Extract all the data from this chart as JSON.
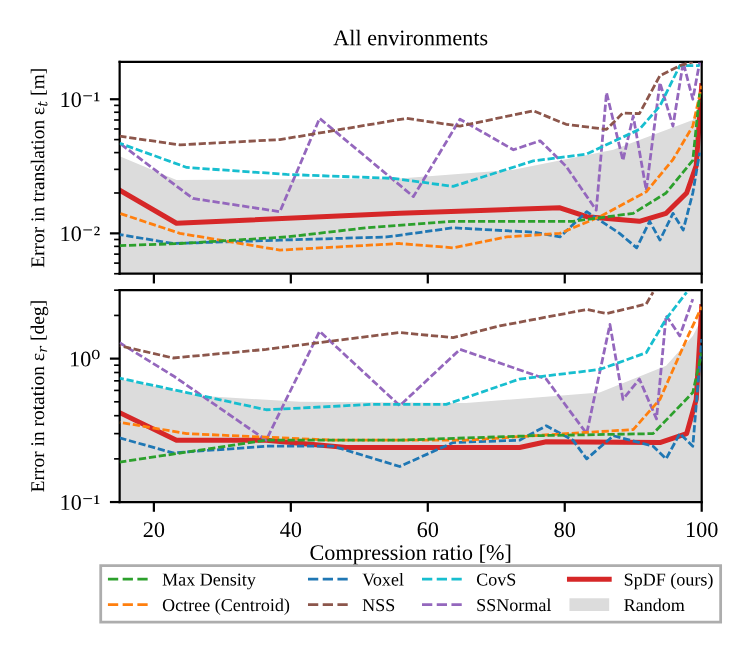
{
  "chart_data": [
    {
      "type": "line",
      "title": "All environments",
      "ylabel": "Error in translation ε$_{t}$ [m]",
      "log": "y",
      "grid": false,
      "tick_labels": "y",
      "xlim": [
        15,
        100
      ],
      "xticks": [
        {
          "value": 20,
          "label": null
        },
        {
          "value": 40,
          "label": null
        },
        {
          "value": 60,
          "label": null
        },
        {
          "value": 80,
          "label": null
        },
        {
          "value": 100,
          "label": null
        }
      ],
      "ylim": [
        0.005,
        0.19
      ],
      "yticks": [
        {
          "value": 0.01,
          "label": "10⁻²"
        },
        {
          "value": 0.1,
          "label": "10⁻¹"
        }
      ],
      "series": [
        {
          "color": "#2ca02c",
          "line_style": "dashed",
          "x": [
            15.0,
            23.8,
            39.4,
            51.0,
            63.7,
            81.2,
            90.0,
            94.8,
            98.7,
            99.7
          ],
          "values": [
            0.0081,
            0.0084,
            0.0094,
            0.011,
            0.0123,
            0.0123,
            0.0141,
            0.02,
            0.035,
            0.11
          ]
        },
        {
          "color": "#ff7f0e",
          "line_style": "dashed",
          "x": [
            15.0,
            23.8,
            38.4,
            55.9,
            63.7,
            71.5,
            79.3,
            85.1,
            91.9,
            95.8,
            98.7,
            100
          ],
          "values": [
            0.0141,
            0.01,
            0.0075,
            0.0084,
            0.0078,
            0.0094,
            0.01,
            0.0133,
            0.0204,
            0.0355,
            0.063,
            0.126
          ]
        },
        {
          "color": "#1f77b4",
          "line_style": "dashed",
          "x": [
            15.0,
            22.8,
            38.4,
            54.0,
            63.7,
            75.4,
            79.3,
            83.2,
            88.0,
            90.5,
            92.4,
            93.9,
            95.8,
            97.3,
            98.7,
            99.7
          ],
          "values": [
            0.0098,
            0.0084,
            0.0089,
            0.0094,
            0.011,
            0.0102,
            0.0094,
            0.0145,
            0.01,
            0.0078,
            0.0123,
            0.0089,
            0.0141,
            0.0106,
            0.02,
            0.04
          ]
        },
        {
          "color": "#8c564b",
          "line_style": "dashed",
          "x": [
            15.0,
            23.8,
            38.4,
            56.9,
            64.7,
            75.4,
            80.2,
            86.1,
            88.5,
            90.9,
            93.9,
            96.8,
            98.7
          ],
          "values": [
            0.053,
            0.0457,
            0.05,
            0.072,
            0.063,
            0.082,
            0.065,
            0.0596,
            0.079,
            0.078,
            0.15,
            0.178,
            0.19
          ]
        },
        {
          "color": "#17becf",
          "line_style": "dashed",
          "x": [
            15.0,
            24.8,
            39.4,
            54.9,
            63.7,
            75.4,
            83.2,
            90.9,
            93.9,
            96.8,
            99.7
          ],
          "values": [
            0.047,
            0.031,
            0.0275,
            0.0257,
            0.0224,
            0.0347,
            0.039,
            0.0596,
            0.089,
            0.178,
            0.178
          ]
        },
        {
          "color": "#9467bd",
          "line_style": "dashed",
          "x": [
            15.0,
            25.7,
            38.4,
            44.2,
            57.9,
            64.7,
            72.5,
            76.4,
            80.2,
            84.6,
            86.1,
            88.5,
            90.0,
            91.9,
            93.9,
            95.8,
            97.3,
            98.7,
            99.7
          ],
          "values": [
            0.047,
            0.0182,
            0.0145,
            0.072,
            0.0188,
            0.071,
            0.042,
            0.049,
            0.0316,
            0.0149,
            0.112,
            0.035,
            0.075,
            0.021,
            0.133,
            0.063,
            0.188,
            0.1,
            0.188
          ]
        },
        {
          "color": "#d62728",
          "line_style": "solid",
          "x": [
            15.0,
            23.3,
            55.9,
            79.3,
            83.2,
            90.9,
            94.8,
            97.8,
            99.2,
            100
          ],
          "values": [
            0.021,
            0.0119,
            0.0141,
            0.0155,
            0.0133,
            0.0123,
            0.0141,
            0.02,
            0.032,
            0.126
          ]
        },
        {
          "type": "area",
          "color": "#dcdcdc",
          "x": [
            15.0,
            23.3,
            55.9,
            72.5,
            87.1,
            98.7,
            100
          ],
          "values": [
            0.0376,
            0.025,
            0.0257,
            0.0298,
            0.042,
            0.07,
            0.1
          ]
        }
      ]
    },
    {
      "type": "line",
      "xlabel": "Compression ratio [%]",
      "ylabel": "Error in rotation ε$_{r}$ [deg]",
      "log": "y",
      "grid": false,
      "legend": "bottom",
      "xlim": [
        15,
        100
      ],
      "xticks": [
        20,
        40,
        60,
        80,
        100
      ],
      "ylim": [
        0.1,
        3
      ],
      "yticks": [
        {
          "value": 0.1,
          "label": "10⁻¹"
        },
        {
          "value": 1,
          "label": "10⁰"
        }
      ],
      "series": [
        {
          "name": "Max Density",
          "color": "#2ca02c",
          "line_style": "dashed",
          "x": [
            15.0,
            36.4,
            55.9,
            75.4,
            92.9,
            98.7,
            100
          ],
          "values": [
            0.19,
            0.27,
            0.27,
            0.29,
            0.3,
            0.58,
            1.1
          ]
        },
        {
          "name": "Octree (Centroid)",
          "color": "#ff7f0e",
          "line_style": "dashed",
          "x": [
            15.0,
            24.8,
            46.2,
            65.6,
            80.2,
            90.0,
            93.9,
            97.8,
            100
          ],
          "values": [
            0.36,
            0.3,
            0.27,
            0.27,
            0.3,
            0.32,
            0.52,
            1.37,
            2.3
          ]
        },
        {
          "name": "Voxel",
          "color": "#1f77b4",
          "line_style": "dashed",
          "x": [
            15.0,
            22.8,
            36.4,
            46.2,
            55.9,
            63.7,
            73.4,
            77.3,
            81.2,
            83.2,
            87.1,
            92.9,
            94.8,
            96.8,
            98.7,
            100
          ],
          "values": [
            0.28,
            0.22,
            0.245,
            0.245,
            0.177,
            0.26,
            0.27,
            0.34,
            0.27,
            0.2,
            0.29,
            0.245,
            0.2,
            0.3,
            0.245,
            1.37
          ]
        },
        {
          "name": "NSS",
          "color": "#8c564b",
          "line_style": "dashed",
          "x": [
            15.0,
            22.8,
            36.4,
            55.9,
            63.7,
            70.5,
            83.2,
            86.1,
            91.9,
            92.9
          ],
          "values": [
            1.23,
            1.01,
            1.16,
            1.52,
            1.4,
            1.69,
            2.2,
            2.06,
            2.4,
            2.9
          ]
        },
        {
          "name": "CovS",
          "color": "#17becf",
          "line_style": "dashed",
          "x": [
            15.0,
            24.8,
            36.4,
            52.0,
            62.7,
            73.4,
            85.1,
            91.9,
            94.8,
            97.8
          ],
          "values": [
            0.73,
            0.58,
            0.44,
            0.48,
            0.48,
            0.72,
            0.84,
            1.1,
            1.89,
            2.9
          ]
        },
        {
          "name": "SSNormal",
          "color": "#9467bd",
          "line_style": "dashed",
          "x": [
            15.0,
            22.8,
            36.4,
            44.2,
            55.9,
            64.7,
            77.3,
            83.2,
            86.6,
            88.5,
            90.9,
            93.4,
            94.8,
            96.8,
            98.7
          ],
          "values": [
            1.29,
            0.76,
            0.27,
            1.55,
            0.47,
            1.16,
            0.72,
            0.3,
            1.73,
            0.52,
            0.72,
            0.38,
            2.0,
            1.44,
            2.6
          ]
        },
        {
          "name": "SpDF (ours)",
          "color": "#d62728",
          "line_style": "solid",
          "x": [
            15.0,
            23.3,
            36.4,
            48.1,
            73.4,
            77.3,
            93.9,
            97.8,
            99.2,
            100
          ],
          "values": [
            0.42,
            0.27,
            0.27,
            0.24,
            0.24,
            0.263,
            0.26,
            0.3,
            0.52,
            2.3
          ]
        },
        {
          "name": "Random",
          "type": "area",
          "color": "#dcdcdc",
          "x": [
            15.0,
            26.7,
            41.3,
            65.6,
            85.1,
            94.8,
            98.7,
            100
          ],
          "values": [
            0.72,
            0.55,
            0.5,
            0.49,
            0.58,
            0.89,
            1.44,
            1.9
          ]
        }
      ]
    }
  ]
}
